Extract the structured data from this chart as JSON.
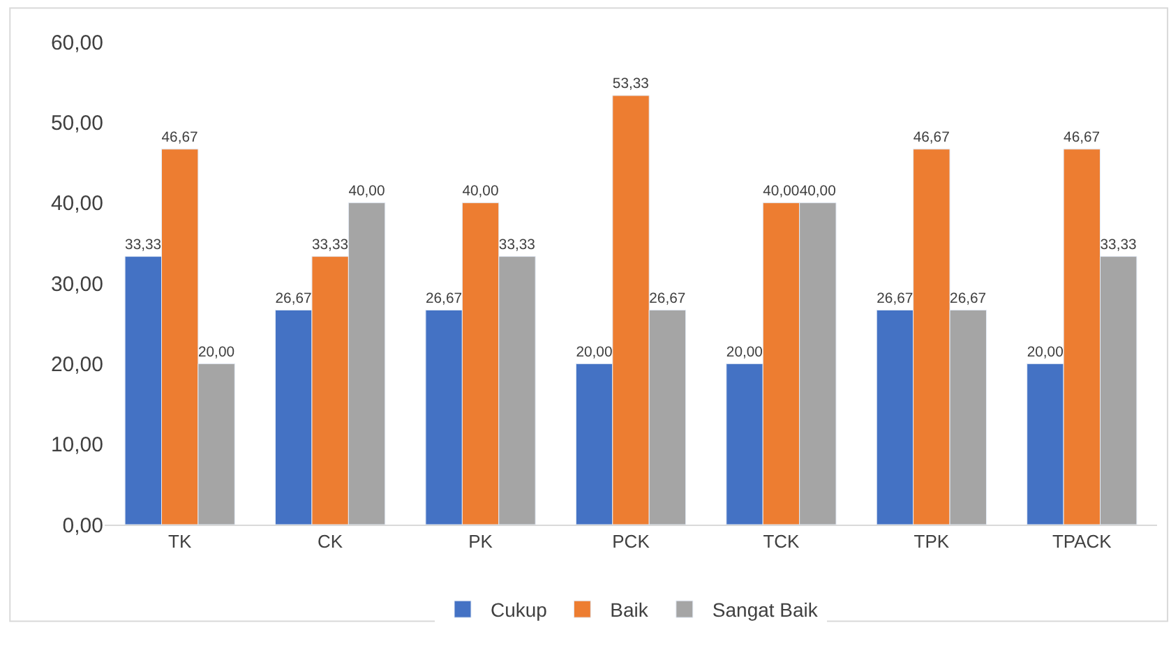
{
  "chart_data": {
    "type": "bar",
    "categories": [
      "TK",
      "CK",
      "PK",
      "PCK",
      "TCK",
      "TPK",
      "TPACK"
    ],
    "series": [
      {
        "name": "Cukup",
        "color": "#4472c4",
        "values": [
          33.33,
          26.67,
          26.67,
          20.0,
          20.0,
          26.67,
          20.0
        ],
        "value_labels": [
          "33,33",
          "26,67",
          "26,67",
          "20,00",
          "20,00",
          "26,67",
          "20,00"
        ]
      },
      {
        "name": "Baik",
        "color": "#ed7d31",
        "values": [
          46.67,
          33.33,
          40.0,
          53.33,
          40.0,
          46.67,
          46.67
        ],
        "value_labels": [
          "46,67",
          "33,33",
          "40,00",
          "53,33",
          "40,00",
          "46,67",
          "46,67"
        ]
      },
      {
        "name": "Sangat Baik",
        "color": "#a5a5a5",
        "values": [
          20.0,
          40.0,
          33.33,
          26.67,
          40.0,
          26.67,
          33.33
        ],
        "value_labels": [
          "20,00",
          "40,00",
          "33,33",
          "26,67",
          "40,00",
          "26,67",
          "33,33"
        ]
      }
    ],
    "ylim": [
      0,
      60
    ],
    "yticks": [
      {
        "value": 0,
        "label": "0,00"
      },
      {
        "value": 10,
        "label": "10,00"
      },
      {
        "value": 20,
        "label": "20,00"
      },
      {
        "value": 30,
        "label": "30,00"
      },
      {
        "value": 40,
        "label": "40,00"
      },
      {
        "value": 50,
        "label": "50,00"
      },
      {
        "value": 60,
        "label": "60,00"
      }
    ],
    "grid": false,
    "legend": "bottom"
  }
}
